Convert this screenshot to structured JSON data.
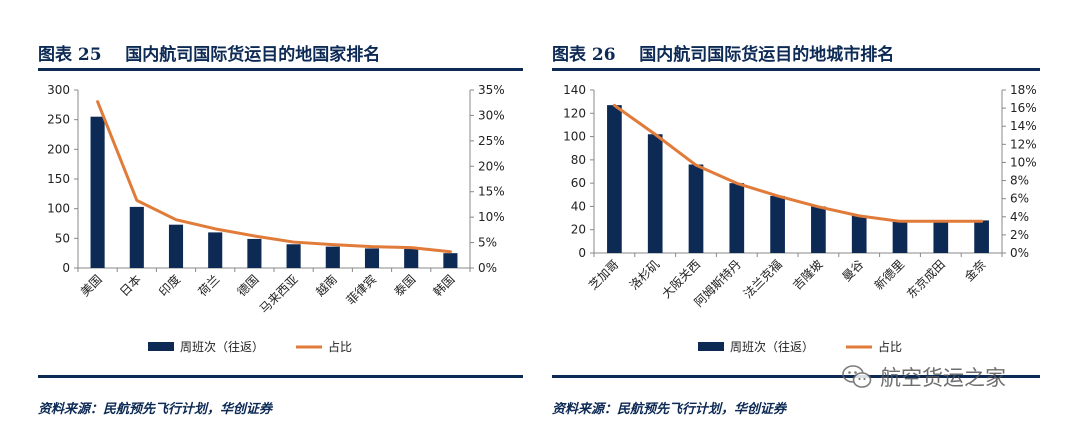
{
  "figures": [
    {
      "label": "图表 25",
      "title": "国内航司国际货运目的地国家排名",
      "source": "资料来源：民航预先飞行计划，华创证券",
      "chart_data": {
        "type": "bar+line",
        "categories": [
          "美国",
          "日本",
          "印度",
          "荷兰",
          "德国",
          "马来西亚",
          "越南",
          "菲律宾",
          "泰国",
          "韩国"
        ],
        "series": [
          {
            "name": "周班次（往返）",
            "type": "bar",
            "axis": "left",
            "color": "#0d2a55",
            "values": [
              255,
              103,
              73,
              60,
              49,
              40,
              36,
              33,
              32,
              25
            ]
          },
          {
            "name": "占比",
            "type": "line",
            "axis": "right",
            "color": "#e07b39",
            "values": [
              32.7,
              13.3,
              9.5,
              7.7,
              6.3,
              5.1,
              4.6,
              4.2,
              4.0,
              3.2
            ]
          }
        ],
        "y_left": {
          "min": 0,
          "max": 300,
          "step": 50,
          "ticks": [
            "0",
            "50",
            "100",
            "150",
            "200",
            "250",
            "300"
          ]
        },
        "y_right": {
          "min": 0,
          "max": 35,
          "step": 5,
          "ticks": [
            "0%",
            "5%",
            "10%",
            "15%",
            "20%",
            "25%",
            "30%",
            "35%"
          ]
        },
        "legend": [
          "周班次（往返）",
          "占比"
        ],
        "legend_position": "bottom"
      }
    },
    {
      "label": "图表 26",
      "title": "国内航司国际货运目的地城市排名",
      "source": "资料来源：民航预先飞行计划，华创证券",
      "chart_data": {
        "type": "bar+line",
        "categories": [
          "芝加哥",
          "洛杉矶",
          "大阪关西",
          "阿姆斯特丹",
          "法兰克福",
          "吉隆坡",
          "曼谷",
          "新德里",
          "东京成田",
          "金奈"
        ],
        "series": [
          {
            "name": "周班次（往返）",
            "type": "bar",
            "axis": "left",
            "color": "#0d2a55",
            "values": [
              127,
              102,
              76,
              60,
              49,
              40,
              32,
              27,
              27,
              28
            ]
          },
          {
            "name": "占比",
            "type": "line",
            "axis": "right",
            "color": "#e07b39",
            "values": [
              16.3,
              13.1,
              9.7,
              7.7,
              6.3,
              5.1,
              4.1,
              3.5,
              3.5,
              3.5
            ]
          }
        ],
        "y_left": {
          "min": 0,
          "max": 140,
          "step": 20,
          "ticks": [
            "0",
            "20",
            "40",
            "60",
            "80",
            "100",
            "120",
            "140"
          ]
        },
        "y_right": {
          "min": 0,
          "max": 18,
          "step": 2,
          "ticks": [
            "0%",
            "2%",
            "4%",
            "6%",
            "8%",
            "10%",
            "12%",
            "14%",
            "16%",
            "18%"
          ]
        },
        "legend": [
          "周班次（往返）",
          "占比"
        ],
        "legend_position": "bottom"
      }
    }
  ],
  "watermark": {
    "text": "航空货运之家",
    "icon": "wechat-icon"
  }
}
